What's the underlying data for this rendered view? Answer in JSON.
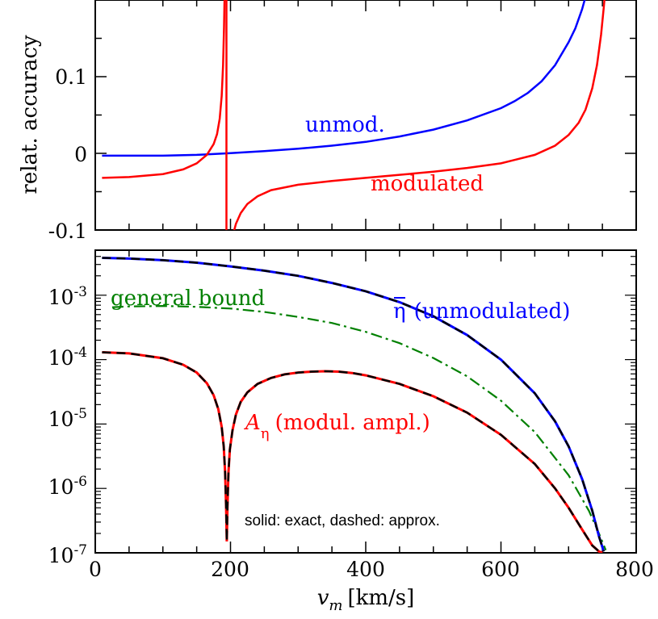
{
  "chart_data": [
    {
      "type": "line",
      "panel": "top",
      "ylabel": "relat. accuracy",
      "xlim": [
        0,
        800
      ],
      "ylim": [
        -0.1,
        0.2
      ],
      "y_ticks": [
        {
          "value": 0.1,
          "label": "0.1"
        },
        {
          "value": 0.0,
          "label": "0"
        },
        {
          "value": -0.1,
          "label": "-0.1"
        }
      ],
      "series": [
        {
          "name": "unmod.",
          "color": "#0000ff",
          "x": [
            10,
            50,
            100,
            150,
            195,
            250,
            300,
            350,
            400,
            450,
            500,
            550,
            600,
            620,
            640,
            660,
            680,
            700,
            710,
            720,
            730,
            735,
            740
          ],
          "y": [
            -0.003,
            -0.003,
            -0.003,
            -0.002,
            0.0,
            0.003,
            0.006,
            0.01,
            0.015,
            0.022,
            0.031,
            0.043,
            0.059,
            0.068,
            0.079,
            0.094,
            0.115,
            0.145,
            0.163,
            0.188,
            0.22,
            0.24,
            0.265
          ]
        },
        {
          "name": "modulated",
          "color": "#ff0000",
          "segments": [
            {
              "x": [
                10,
                50,
                100,
                130,
                150,
                165,
                175,
                180,
                184,
                187,
                189,
                190.5,
                191.5
              ],
              "y": [
                -0.032,
                -0.031,
                -0.027,
                -0.021,
                -0.013,
                -0.002,
                0.012,
                0.025,
                0.045,
                0.075,
                0.115,
                0.165,
                0.22
              ]
            },
            {
              "x": [
                196.5,
                197.5,
                199,
                201,
                204,
                208,
                215,
                225,
                240,
                260,
                300,
                350,
                400,
                450,
                500,
                550,
                600,
                650,
                680,
                700,
                715,
                725,
                735,
                742,
                748,
                752,
                755
              ],
              "y": [
                -0.22,
                -0.17,
                -0.14,
                -0.12,
                -0.105,
                -0.092,
                -0.078,
                -0.066,
                -0.056,
                -0.048,
                -0.041,
                -0.036,
                -0.032,
                -0.028,
                -0.024,
                -0.019,
                -0.013,
                -0.002,
                0.01,
                0.024,
                0.04,
                0.057,
                0.085,
                0.115,
                0.155,
                0.19,
                0.22
              ]
            }
          ]
        }
      ],
      "annotations": [
        {
          "text": "unmod.",
          "color": "#0000ff"
        },
        {
          "text": "modulated",
          "color": "#ff0000"
        }
      ]
    },
    {
      "type": "line",
      "panel": "bottom",
      "xlabel_var": "v",
      "xlabel_sub": "m",
      "xlabel_unit": "[km/s]",
      "xlim": [
        0,
        800
      ],
      "ylim": [
        1e-07,
        0.005
      ],
      "y_log": true,
      "x_ticks": [
        {
          "value": 0,
          "label": "0"
        },
        {
          "value": 200,
          "label": "200"
        },
        {
          "value": 400,
          "label": "400"
        },
        {
          "value": 600,
          "label": "600"
        },
        {
          "value": 800,
          "label": "800"
        }
      ],
      "y_ticks": [
        {
          "value": 0.001,
          "base": "10",
          "exp": "-3"
        },
        {
          "value": 0.0001,
          "base": "10",
          "exp": "-4"
        },
        {
          "value": 1e-05,
          "base": "10",
          "exp": "-5"
        },
        {
          "value": 1e-06,
          "base": "10",
          "exp": "-6"
        },
        {
          "value": 1e-07,
          "base": "10",
          "exp": "-7"
        }
      ],
      "series": [
        {
          "name": "η̄ (unmodulated)",
          "color": "#0000ff",
          "exact_color": "#000000",
          "x": [
            10,
            50,
            100,
            150,
            200,
            250,
            300,
            350,
            400,
            450,
            500,
            550,
            600,
            650,
            680,
            700,
            720,
            735,
            745,
            752
          ],
          "y": [
            0.0038,
            0.0037,
            0.0035,
            0.0032,
            0.0028,
            0.0024,
            0.002,
            0.00155,
            0.00115,
            0.00078,
            0.00047,
            0.00024,
            0.0001,
            3e-05,
            1.1e-05,
            4.5e-06,
            1.4e-06,
            4.5e-07,
            1.8e-07,
            1.05e-07
          ]
        },
        {
          "name": "general bound",
          "color": "#008000",
          "x": [
            25,
            50,
            100,
            150,
            200,
            250,
            300,
            350,
            400,
            450,
            500,
            550,
            600,
            650,
            700,
            730,
            745,
            755
          ],
          "y": [
            0.00065,
            0.00067,
            0.00068,
            0.00066,
            0.00062,
            0.00055,
            0.00046,
            0.00037,
            0.00027,
            0.00018,
            0.000106,
            5.5e-05,
            2.3e-05,
            7.5e-06,
            1.6e-06,
            4.5e-07,
            2e-07,
            1.1e-07
          ]
        },
        {
          "name": "A_η (modul. ampl.)",
          "color": "#ff0000",
          "exact_color": "#000000",
          "x": [
            10,
            50,
            100,
            130,
            150,
            165,
            175,
            182,
            187,
            190,
            192,
            193.5,
            194.5,
            195.5,
            197,
            199,
            203,
            208,
            215,
            225,
            240,
            260,
            280,
            300,
            320,
            340,
            360,
            380,
            400,
            450,
            500,
            550,
            600,
            650,
            680,
            700,
            720,
            735,
            745,
            750
          ],
          "y": [
            0.00013,
            0.000125,
            0.000105,
            8.3e-05,
            6.3e-05,
            4.3e-05,
            2.8e-05,
            1.7e-05,
            9e-06,
            4.5e-06,
            1.8e-06,
            5e-07,
            1.5e-07,
            5e-07,
            1.8e-06,
            4e-06,
            8e-06,
            1.4e-05,
            2.2e-05,
            3.1e-05,
            4.2e-05,
            5.2e-05,
            5.9e-05,
            6.3e-05,
            6.5e-05,
            6.6e-05,
            6.5e-05,
            6.2e-05,
            5.7e-05,
            4.2e-05,
            2.7e-05,
            1.5e-05,
            6.8e-06,
            2.4e-06,
            1e-06,
            5e-07,
            2.3e-07,
            1.3e-07,
            1.05e-07,
            1e-07
          ]
        }
      ],
      "annotations": {
        "general_bound": {
          "text": "general bound",
          "color": "#008000"
        },
        "unmodulated": {
          "symbol": "η",
          "text": "(unmodulated)",
          "color": "#0000ff"
        },
        "modulated": {
          "var": "A",
          "sub": "η",
          "text": "(modul. ampl.)",
          "color": "#ff0000"
        },
        "legend_note": {
          "text": "solid: exact, dashed: approx.",
          "color": "#000000"
        }
      }
    }
  ]
}
